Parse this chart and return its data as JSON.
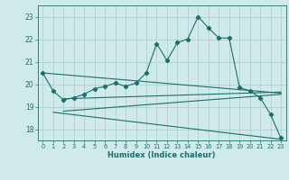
{
  "xlabel": "Humidex (Indice chaleur)",
  "bg_color": "#d0eaea",
  "grid_color": "#a8cccc",
  "line_color": "#1a6e6e",
  "xlim": [
    -0.5,
    23.5
  ],
  "ylim": [
    17.5,
    23.5
  ],
  "yticks": [
    18,
    19,
    20,
    21,
    22,
    23
  ],
  "xticks": [
    0,
    1,
    2,
    3,
    4,
    5,
    6,
    7,
    8,
    9,
    10,
    11,
    12,
    13,
    14,
    15,
    16,
    17,
    18,
    19,
    20,
    21,
    22,
    23
  ],
  "main_x": [
    0,
    1,
    2,
    3,
    4,
    5,
    6,
    7,
    8,
    9,
    10,
    11,
    12,
    13,
    14,
    15,
    16,
    17,
    18,
    19,
    20,
    21,
    22,
    23
  ],
  "main_y": [
    20.5,
    19.7,
    19.3,
    19.4,
    19.55,
    19.8,
    19.9,
    20.05,
    19.9,
    20.05,
    20.5,
    21.8,
    21.05,
    21.85,
    22.0,
    23.0,
    22.5,
    22.05,
    22.05,
    19.85,
    19.7,
    19.4,
    18.65,
    17.6
  ],
  "upper_line": [
    [
      0,
      20.5
    ],
    [
      23,
      19.6
    ]
  ],
  "lower_line": [
    [
      1,
      18.75
    ],
    [
      23,
      17.55
    ]
  ],
  "mid_upper_line": [
    [
      2,
      19.35
    ],
    [
      23,
      19.65
    ]
  ],
  "mid_lower_line": [
    [
      2,
      18.8
    ],
    [
      23,
      19.55
    ]
  ]
}
